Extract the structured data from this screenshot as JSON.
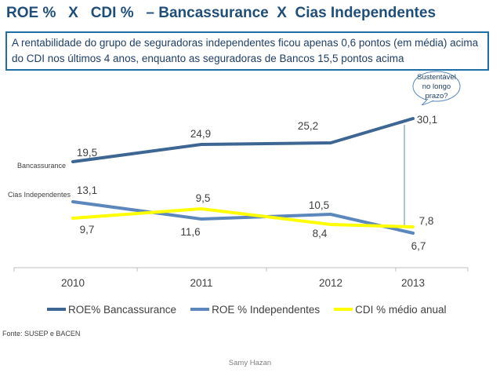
{
  "header": {
    "title": "ROE %   X   CDI %   – Bancassurance  X  Cias Independentes",
    "subtitle": "A rentabilidade do grupo de seguradoras independentes ficou apenas 0,6 pontos (em média) acima do CDI nos últimos 4 anos, enquanto as seguradoras de Bancos 15,5 pontos acima"
  },
  "callout": {
    "text": "Sustentável no longo prazo?"
  },
  "colors": {
    "bancassurance": "#3e6693",
    "independentes": "#5b87bd",
    "cdi": "#ffff00"
  },
  "chart_data": {
    "type": "line",
    "categories": [
      "2010",
      "2011",
      "2012",
      "2013"
    ],
    "series": [
      {
        "name": "ROE% Bancassurance",
        "values": [
          19.5,
          24.9,
          25.2,
          30.1
        ],
        "labels": [
          "19,5",
          "24,9",
          "25,2",
          "30,1"
        ],
        "side_label": "Bancassurance"
      },
      {
        "name": "ROE % Independentes",
        "values": [
          13.1,
          9.5,
          10.5,
          6.7
        ],
        "labels": [
          "13,1",
          "9,5",
          "10,5",
          "6,7"
        ],
        "side_label": "Cias Independentes"
      },
      {
        "name": "CDI % médio anual",
        "values": [
          9.7,
          11.6,
          8.4,
          7.8
        ],
        "labels": [
          "9,7",
          "11,6",
          "8,4",
          "7,8"
        ]
      }
    ],
    "grid": false,
    "legend": "bottom"
  },
  "footer": {
    "source": "Fonte: SUSEP e BACEN",
    "author": "Samy Hazan"
  }
}
